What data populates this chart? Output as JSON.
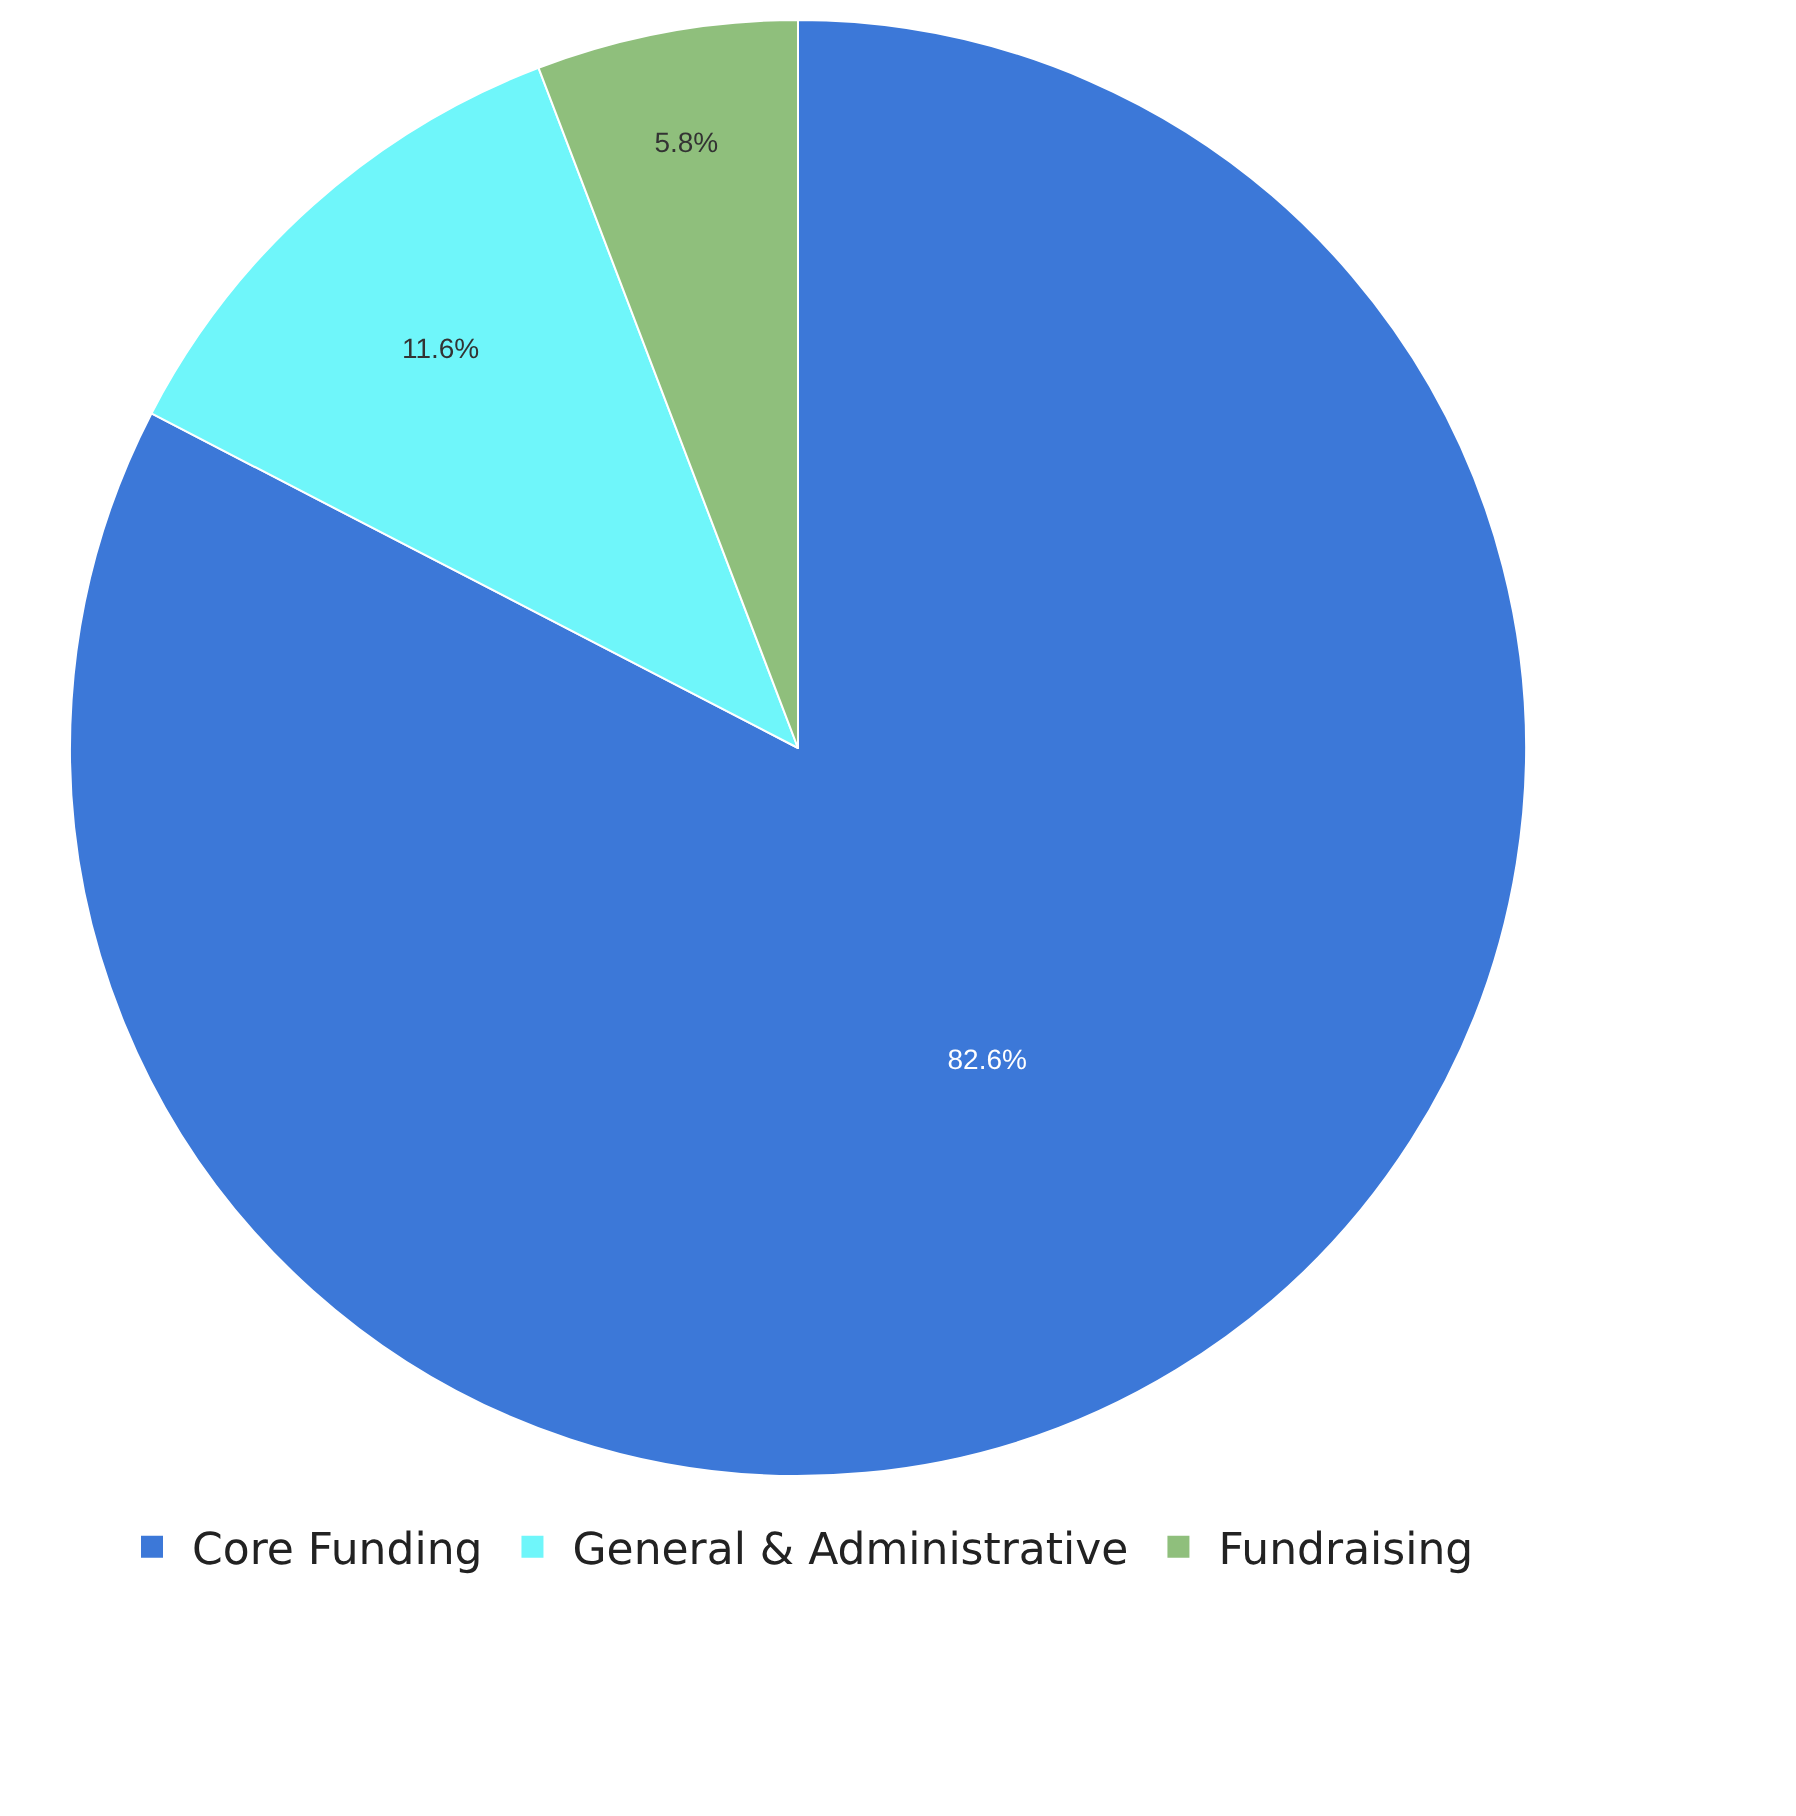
{
  "chart_data": {
    "type": "pie",
    "categories": [
      "Core Funding",
      "General & Administrative",
      "Fundraising"
    ],
    "values": [
      82.6,
      11.6,
      5.8
    ],
    "value_labels": [
      "82.6%",
      "11.6%",
      "5.8%"
    ],
    "colors": [
      "#3c78d8",
      "#6ff6fa",
      "#8fbf7c"
    ],
    "legend": "bottom"
  }
}
